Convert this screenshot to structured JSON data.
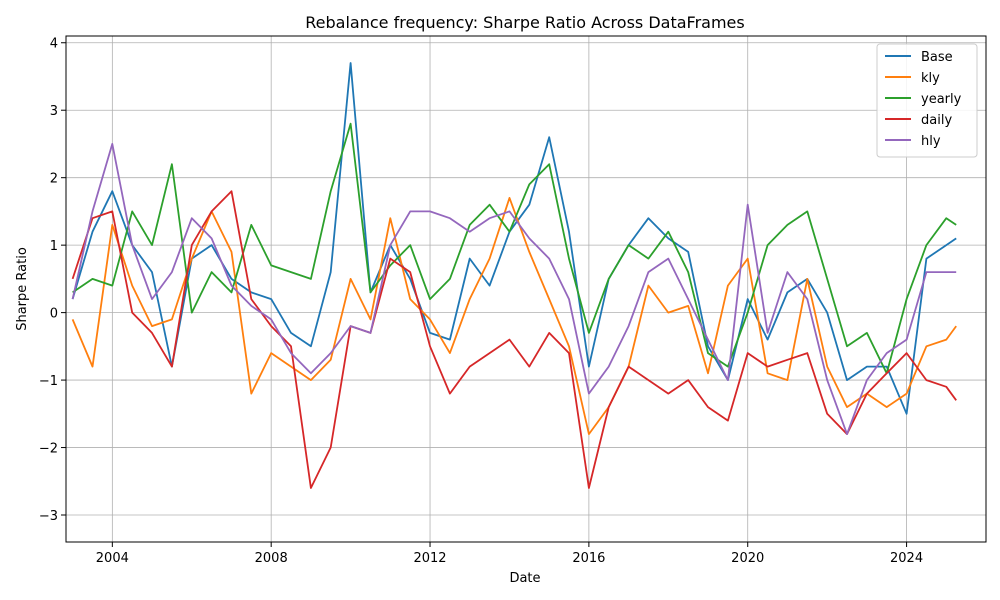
{
  "chart_data": {
    "type": "line",
    "title": "Rebalance frequency: Sharpe Ratio Across DataFrames",
    "xlabel": "Date",
    "ylabel": "Sharpe Ratio",
    "xlim": [
      "2002-11-01",
      "2026-01-01"
    ],
    "ylim": [
      -3.4,
      4.1
    ],
    "xticks": [
      "2004",
      "2008",
      "2012",
      "2016",
      "2020",
      "2024"
    ],
    "yticks": [
      -3,
      -2,
      -1,
      0,
      1,
      2,
      3,
      4
    ],
    "grid": true,
    "legend_position": "top-right",
    "x": [
      "2003-01",
      "2003-07",
      "2004-01",
      "2004-07",
      "2005-01",
      "2005-07",
      "2006-01",
      "2006-07",
      "2007-01",
      "2007-07",
      "2008-01",
      "2008-07",
      "2009-01",
      "2009-07",
      "2010-01",
      "2010-07",
      "2011-01",
      "2011-07",
      "2012-01",
      "2012-07",
      "2013-01",
      "2013-07",
      "2014-01",
      "2014-07",
      "2015-01",
      "2015-07",
      "2016-01",
      "2016-07",
      "2017-01",
      "2017-07",
      "2018-01",
      "2018-07",
      "2019-01",
      "2019-07",
      "2020-01",
      "2020-07",
      "2021-01",
      "2021-07",
      "2022-01",
      "2022-07",
      "2023-01",
      "2023-07",
      "2024-01",
      "2024-07",
      "2025-01",
      "2025-04"
    ],
    "series": [
      {
        "name": "Base",
        "color": "#1f77b4",
        "values": [
          0.2,
          1.2,
          1.8,
          1.0,
          0.6,
          -0.8,
          0.8,
          1.0,
          0.5,
          0.3,
          0.2,
          -0.3,
          -0.5,
          0.6,
          3.7,
          0.3,
          1.0,
          0.5,
          -0.3,
          -0.4,
          0.8,
          0.4,
          1.2,
          1.6,
          2.6,
          1.2,
          -0.8,
          0.5,
          1.0,
          1.4,
          1.1,
          0.9,
          -0.5,
          -1.0,
          0.2,
          -0.4,
          0.3,
          0.5,
          0.0,
          -1.0,
          -0.8,
          -0.8,
          -1.5,
          0.8,
          1.0,
          1.1
        ]
      },
      {
        "name": "kly",
        "color": "#ff7f0e",
        "values": [
          -0.1,
          -0.8,
          1.3,
          0.4,
          -0.2,
          -0.1,
          0.8,
          1.5,
          0.9,
          -1.2,
          -0.6,
          -0.8,
          -1.0,
          -0.7,
          0.5,
          -0.1,
          1.4,
          0.2,
          -0.1,
          -0.6,
          0.2,
          0.8,
          1.7,
          0.9,
          0.2,
          -0.5,
          -1.8,
          -1.4,
          -0.8,
          0.4,
          0.0,
          0.1,
          -0.9,
          0.4,
          0.8,
          -0.9,
          -1.0,
          0.5,
          -0.8,
          -1.4,
          -1.2,
          -1.4,
          -1.2,
          -0.5,
          -0.4,
          -0.2
        ]
      },
      {
        "name": "yearly",
        "color": "#2ca02c",
        "values": [
          0.3,
          0.5,
          0.4,
          1.5,
          1.0,
          2.2,
          0.0,
          0.6,
          0.3,
          1.3,
          0.7,
          0.6,
          0.5,
          1.8,
          2.8,
          0.3,
          0.7,
          1.0,
          0.2,
          0.5,
          1.3,
          1.6,
          1.2,
          1.9,
          2.2,
          0.8,
          -0.3,
          0.5,
          1.0,
          0.8,
          1.2,
          0.6,
          -0.6,
          -0.8,
          0.0,
          1.0,
          1.3,
          1.5,
          0.5,
          -0.5,
          -0.3,
          -0.9,
          0.2,
          1.0,
          1.4,
          1.3
        ]
      },
      {
        "name": "daily",
        "color": "#d62728",
        "values": [
          0.5,
          1.4,
          1.5,
          0.0,
          -0.3,
          -0.8,
          1.0,
          1.5,
          1.8,
          0.2,
          -0.2,
          -0.5,
          -2.6,
          -2.0,
          -0.2,
          -0.3,
          0.8,
          0.6,
          -0.5,
          -1.2,
          -0.8,
          -0.6,
          -0.4,
          -0.8,
          -0.3,
          -0.6,
          -2.6,
          -1.4,
          -0.8,
          -1.0,
          -1.2,
          -1.0,
          -1.4,
          -1.6,
          -0.6,
          -0.8,
          -0.7,
          -0.6,
          -1.5,
          -1.8,
          -1.2,
          -0.9,
          -0.6,
          -1.0,
          -1.1,
          -1.3
        ]
      },
      {
        "name": "hly",
        "color": "#9467bd",
        "values": [
          0.2,
          1.5,
          2.5,
          1.0,
          0.2,
          0.6,
          1.4,
          1.1,
          0.4,
          0.1,
          -0.1,
          -0.6,
          -0.9,
          -0.6,
          -0.2,
          -0.3,
          1.0,
          1.5,
          1.5,
          1.4,
          1.2,
          1.4,
          1.5,
          1.1,
          0.8,
          0.2,
          -1.2,
          -0.8,
          -0.2,
          0.6,
          0.8,
          0.2,
          -0.4,
          -1.0,
          1.6,
          -0.3,
          0.6,
          0.2,
          -1.0,
          -1.8,
          -1.0,
          -0.6,
          -0.4,
          0.6,
          0.6,
          0.6
        ]
      }
    ]
  }
}
